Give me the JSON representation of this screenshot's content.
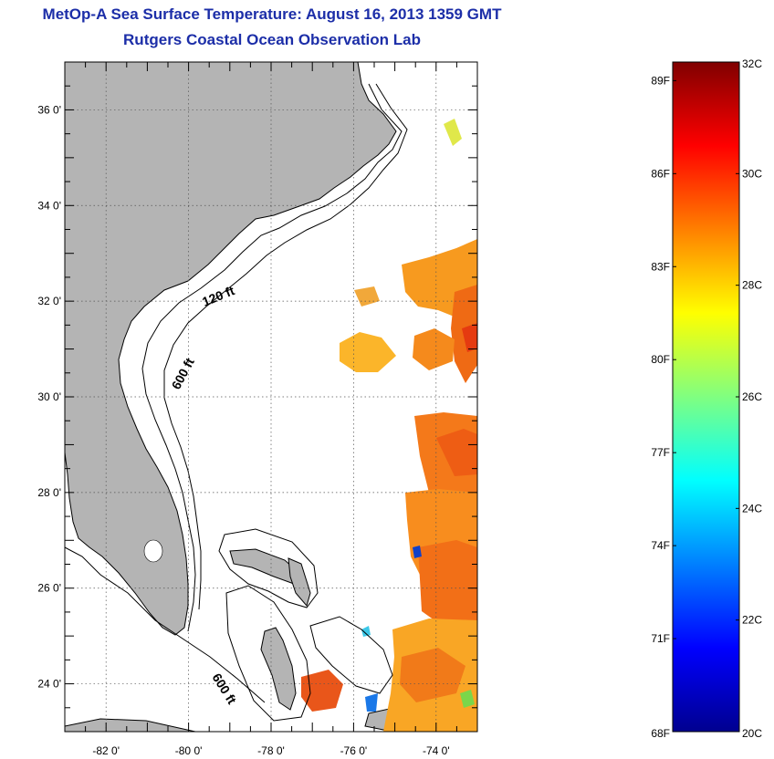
{
  "title": "MetOp-A Sea Surface Temperature:  August 16, 2013 1359 GMT",
  "subtitle": "Rutgers Coastal Ocean Observation Lab",
  "map": {
    "lon_range": [
      -83,
      -73
    ],
    "lat_range": [
      23,
      37
    ],
    "lat_ticks": [
      {
        "lat": 36,
        "label": "36 0'"
      },
      {
        "lat": 34,
        "label": "34 0'"
      },
      {
        "lat": 32,
        "label": "32 0'"
      },
      {
        "lat": 30,
        "label": "30 0'"
      },
      {
        "lat": 28,
        "label": "28 0'"
      },
      {
        "lat": 26,
        "label": "26 0'"
      },
      {
        "lat": 24,
        "label": "24 0'"
      }
    ],
    "lon_ticks": [
      {
        "lon": -82,
        "label": "-82 0'"
      },
      {
        "lon": -80,
        "label": "-80 0'"
      },
      {
        "lon": -78,
        "label": "-78 0'"
      },
      {
        "lon": -76,
        "label": "-76 0'"
      },
      {
        "lon": -74,
        "label": "-74 0'"
      }
    ],
    "contour_labels": [
      {
        "text": "120 ft"
      },
      {
        "text": "600 ft"
      },
      {
        "text": "600 ft"
      }
    ],
    "land_color": "#b4b4b4",
    "grid": true
  },
  "colorbar": {
    "min_c": 20,
    "max_c": 32,
    "celsius_labels": [
      "32C",
      "30C",
      "28C",
      "26C",
      "24C",
      "22C",
      "20C"
    ],
    "fahrenheit_labels": [
      "89F",
      "86F",
      "83F",
      "80F",
      "77F",
      "74F",
      "71F",
      "68F"
    ],
    "colormap": "jet"
  }
}
